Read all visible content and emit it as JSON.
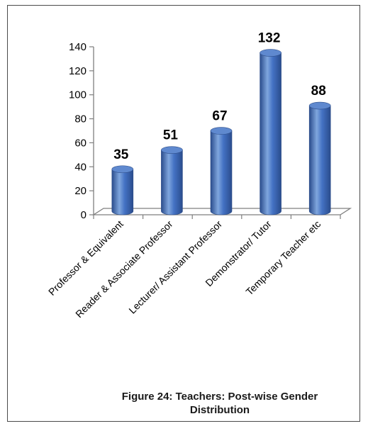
{
  "chart_data": {
    "type": "bar",
    "style": "3d-cylinder",
    "categories": [
      "Professor & Equivalent",
      "Reader & Associate Professor",
      "Lecturer/ Assistant Professor",
      "Demonstrator/ Tutor",
      "Temporary Teacher etc"
    ],
    "values": [
      35,
      51,
      67,
      132,
      88
    ],
    "ylim": [
      0,
      140
    ],
    "yticks": [
      0,
      20,
      40,
      60,
      80,
      100,
      120,
      140
    ],
    "grid": false,
    "legend": "none",
    "bar_color": "#4472C4",
    "bar_dark": "#2A4C8C",
    "bar_light": "#7FA6DE"
  },
  "caption": {
    "line1": "Figure 24: Teachers: Post-wise Gender",
    "line2": "Distribution"
  }
}
